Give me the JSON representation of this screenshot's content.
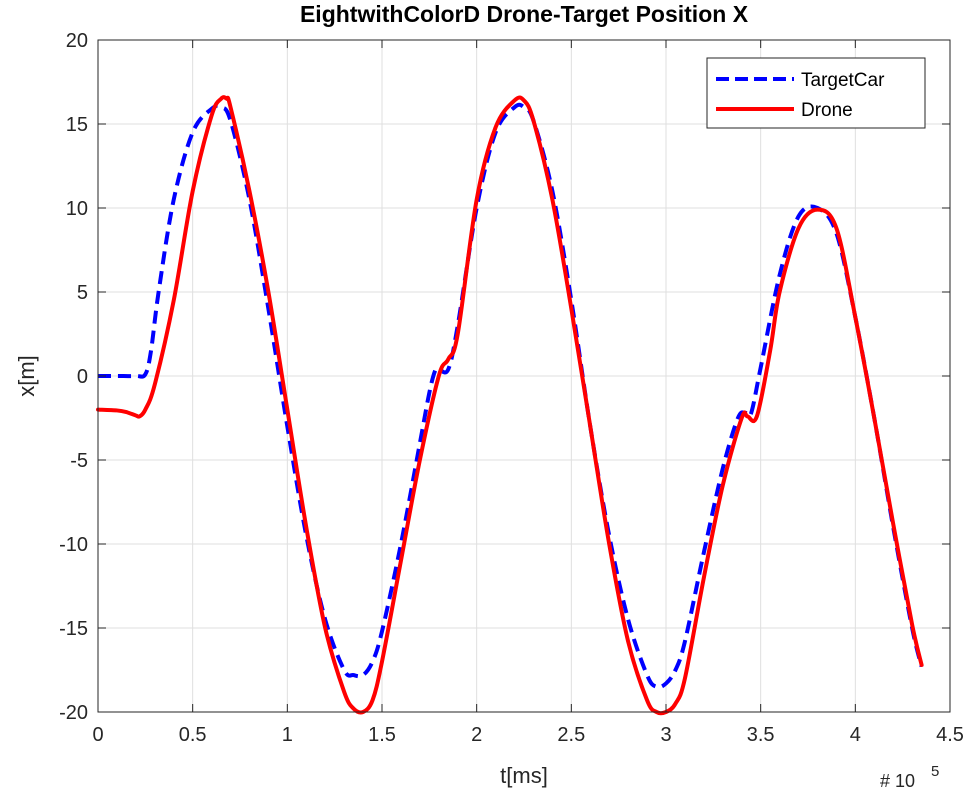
{
  "chart_data": {
    "type": "line",
    "title": "EightwithColorD Drone-Target Position X",
    "xlabel": "t[ms]",
    "ylabel": "x[m]",
    "x_exponent_label": "# 10",
    "x_exponent_power": "5",
    "xlim": [
      0,
      4.5
    ],
    "ylim": [
      -20,
      20
    ],
    "xticks": [
      0,
      0.5,
      1,
      1.5,
      2,
      2.5,
      3,
      3.5,
      4,
      4.5
    ],
    "xtick_labels": [
      "0",
      "0.5",
      "1",
      "1.5",
      "2",
      "2.5",
      "3",
      "3.5",
      "4",
      "4.5"
    ],
    "yticks": [
      -20,
      -15,
      -10,
      -5,
      0,
      5,
      10,
      15,
      20
    ],
    "ytick_labels": [
      "-20",
      "-15",
      "-10",
      "-5",
      "0",
      "5",
      "10",
      "15",
      "20"
    ],
    "grid": true,
    "legend_position": "top-right",
    "series": [
      {
        "name": "TargetCar",
        "color": "#0000ff",
        "style": "dashed",
        "x": [
          0,
          0.1,
          0.2,
          0.25,
          0.28,
          0.32,
          0.4,
          0.5,
          0.6,
          0.65,
          0.7,
          0.8,
          0.9,
          1.0,
          1.1,
          1.2,
          1.3,
          1.35,
          1.4,
          1.45,
          1.5,
          1.6,
          1.7,
          1.75,
          1.78,
          1.8,
          1.85,
          1.9,
          2.0,
          2.1,
          2.2,
          2.25,
          2.3,
          2.4,
          2.5,
          2.6,
          2.7,
          2.8,
          2.9,
          2.95,
          3.0,
          3.05,
          3.1,
          3.2,
          3.3,
          3.38,
          3.42,
          3.45,
          3.5,
          3.6,
          3.7,
          3.8,
          3.9,
          4.0,
          4.1,
          4.2,
          4.3,
          4.35
        ],
        "y": [
          0,
          0,
          0,
          0.1,
          1.5,
          5,
          10.5,
          14.5,
          15.9,
          16,
          15.2,
          10.5,
          4,
          -3,
          -9.5,
          -14.5,
          -17.5,
          -17.8,
          -17.8,
          -17,
          -15.2,
          -10,
          -4,
          -1,
          0.3,
          0.4,
          0.4,
          3,
          10,
          14.5,
          16,
          16,
          15.2,
          11,
          4.5,
          -3,
          -9.5,
          -14.5,
          -17.8,
          -18.5,
          -18.3,
          -17.5,
          -15.8,
          -10.5,
          -5.5,
          -2.5,
          -2.2,
          -2.2,
          0.5,
          6,
          9.5,
          10,
          8.5,
          3.5,
          -2.5,
          -9,
          -15,
          -17.3
        ]
      },
      {
        "name": "Drone",
        "color": "#ff0000",
        "style": "solid",
        "x": [
          0,
          0.1,
          0.15,
          0.2,
          0.22,
          0.25,
          0.3,
          0.4,
          0.5,
          0.6,
          0.65,
          0.68,
          0.7,
          0.8,
          0.9,
          1.0,
          1.1,
          1.2,
          1.3,
          1.35,
          1.4,
          1.45,
          1.5,
          1.6,
          1.7,
          1.8,
          1.85,
          1.9,
          2.0,
          2.1,
          2.2,
          2.25,
          2.3,
          2.4,
          2.5,
          2.6,
          2.7,
          2.8,
          2.9,
          2.95,
          3.0,
          3.05,
          3.1,
          3.2,
          3.3,
          3.4,
          3.43,
          3.48,
          3.55,
          3.6,
          3.7,
          3.8,
          3.9,
          4.0,
          4.1,
          4.2,
          4.3,
          4.35
        ],
        "y": [
          -2,
          -2.05,
          -2.15,
          -2.35,
          -2.4,
          -2,
          -0.5,
          4.5,
          11,
          15.5,
          16.5,
          16.5,
          16,
          11,
          5,
          -2,
          -9,
          -15,
          -18.8,
          -19.8,
          -20,
          -19.3,
          -17,
          -11,
          -5,
          0,
          1,
          2.5,
          10.5,
          14.8,
          16.4,
          16.4,
          15.2,
          10.5,
          4,
          -3,
          -10,
          -15.8,
          -19.3,
          -20,
          -20,
          -19.5,
          -18,
          -12,
          -6.5,
          -2.5,
          -2.4,
          -2.4,
          1.5,
          5,
          8.8,
          9.9,
          8.8,
          3.5,
          -2.5,
          -8.8,
          -14.8,
          -17.2
        ]
      }
    ]
  }
}
